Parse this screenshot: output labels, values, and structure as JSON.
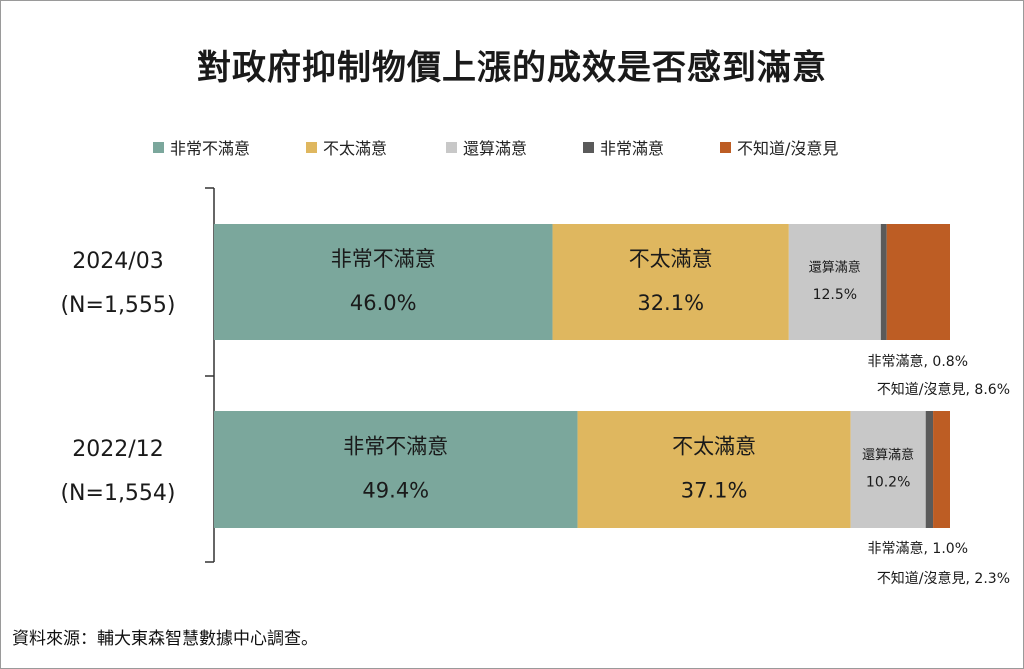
{
  "colors": {
    "very_dissatisfied": "#7ba79c",
    "somewhat_dissatisfied": "#dfb75f",
    "somewhat_satisfied": "#c8c8c8",
    "very_satisfied": "#5a5a5a",
    "no_opinion": "#bd5d24",
    "text": "#1a1a1a"
  },
  "chart_data": {
    "type": "bar",
    "orientation": "horizontal",
    "stacked": true,
    "title": "對政府抑制物價上漲的成效是否感到滿意",
    "legend_position": "top",
    "categories": [
      "2024/03",
      "2022/12"
    ],
    "category_notes": [
      "(N=1,555)",
      "(N=1,554)"
    ],
    "unit": "%",
    "xlim": [
      0,
      100
    ],
    "series": [
      {
        "name": "非常不滿意",
        "values": [
          46.0,
          49.4
        ]
      },
      {
        "name": "不太滿意",
        "values": [
          32.1,
          37.1
        ]
      },
      {
        "name": "還算滿意",
        "values": [
          12.5,
          10.2
        ]
      },
      {
        "name": "非常滿意",
        "values": [
          0.8,
          1.0
        ]
      },
      {
        "name": "不知道/沒意見",
        "values": [
          8.6,
          2.3
        ]
      }
    ],
    "bar_labels": [
      [
        "46.0%",
        "32.1%",
        "12.5%",
        "非常滿意, 0.8%",
        "不知道/沒意見, 8.6%"
      ],
      [
        "49.4%",
        "37.1%",
        "10.2%",
        "非常滿意, 1.0%",
        "不知道/沒意見, 2.3%"
      ]
    ]
  },
  "source_note": "資料來源：輔大東森智慧數據中心調查。"
}
